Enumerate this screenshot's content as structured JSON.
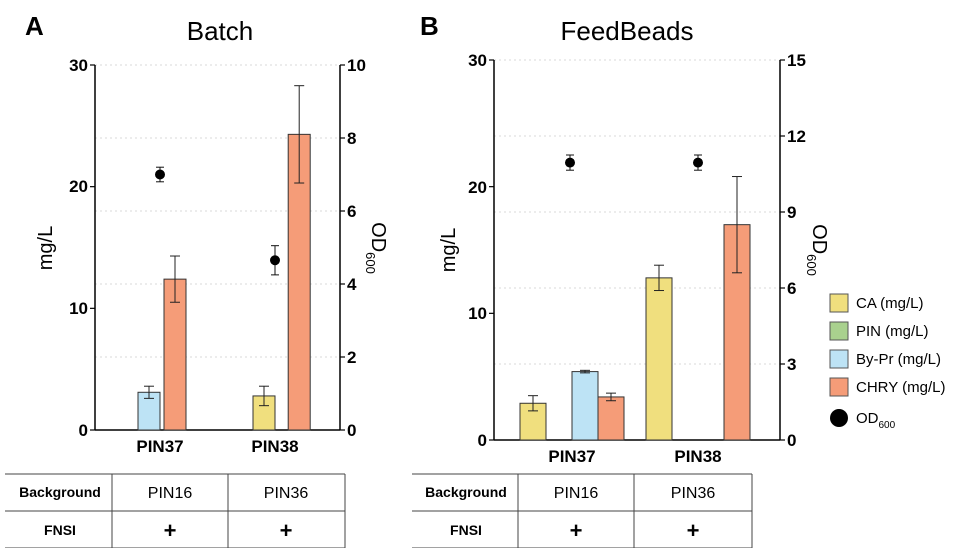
{
  "panels": [
    {
      "letter": "A",
      "title": "Batch",
      "ylabel_left": "mg/L",
      "ylabel_right_main": "OD",
      "ylabel_right_sub": "600",
      "left_ticks": [
        "0",
        "10",
        "20",
        "30"
      ],
      "right_ticks": [
        "0",
        "2",
        "4",
        "6",
        "8",
        "10"
      ],
      "categories": [
        "PIN37",
        "PIN38"
      ],
      "table": {
        "row_headers": [
          "Background",
          "FNSI"
        ],
        "rows": [
          [
            "PIN16",
            "PIN36"
          ],
          [
            "+",
            "+"
          ]
        ]
      }
    },
    {
      "letter": "B",
      "title": "FeedBeads",
      "ylabel_left": "mg/L",
      "ylabel_right_main": "OD",
      "ylabel_right_sub": "600",
      "left_ticks": [
        "0",
        "10",
        "20",
        "30"
      ],
      "right_ticks": [
        "0",
        "3",
        "6",
        "9",
        "12",
        "15"
      ],
      "categories": [
        "PIN37",
        "PIN38"
      ],
      "table": {
        "row_headers": [
          "Background",
          "FNSI"
        ],
        "rows": [
          [
            "PIN16",
            "PIN36"
          ],
          [
            "+",
            "+"
          ]
        ]
      }
    }
  ],
  "legend": [
    {
      "label": "CA (mg/L)",
      "color": "#f0df7e"
    },
    {
      "label": "PIN (mg/L)",
      "color": "#a9d18e"
    },
    {
      "label": "By-Pr (mg/L)",
      "color": "#bde3f5"
    },
    {
      "label": "CHRY (mg/L)",
      "color": "#f59c78"
    },
    {
      "label_main": "OD",
      "label_sub": "600",
      "color": "#000000"
    }
  ],
  "chart_data": [
    {
      "type": "bar",
      "title": "Batch",
      "categories": [
        "PIN37",
        "PIN38"
      ],
      "ylabel": "mg/L",
      "ylim": [
        0,
        30
      ],
      "y2label": "OD600",
      "y2lim": [
        0,
        10
      ],
      "grid": true,
      "series": [
        {
          "name": "CA (mg/L)",
          "color": "#f0df7e",
          "values": [
            0,
            2.8
          ],
          "errors": [
            0,
            0.8
          ]
        },
        {
          "name": "PIN (mg/L)",
          "color": "#a9d18e",
          "values": [
            0,
            0
          ],
          "errors": [
            0,
            0
          ]
        },
        {
          "name": "By-Pr (mg/L)",
          "color": "#bde3f5",
          "values": [
            3.1,
            0
          ],
          "errors": [
            0.5,
            0
          ]
        },
        {
          "name": "CHRY (mg/L)",
          "color": "#f59c78",
          "values": [
            12.4,
            24.3
          ],
          "errors": [
            1.9,
            4.0
          ]
        }
      ],
      "od600": {
        "name": "OD600",
        "axis": "right",
        "values": [
          7.0,
          4.65
        ],
        "errors": [
          0.2,
          0.4
        ]
      }
    },
    {
      "type": "bar",
      "title": "FeedBeads",
      "categories": [
        "PIN37",
        "PIN38"
      ],
      "ylabel": "mg/L",
      "ylim": [
        0,
        30
      ],
      "y2label": "OD600",
      "y2lim": [
        0,
        15
      ],
      "grid": true,
      "series": [
        {
          "name": "CA (mg/L)",
          "color": "#f0df7e",
          "values": [
            2.9,
            12.8
          ],
          "errors": [
            0.6,
            1.0
          ]
        },
        {
          "name": "PIN (mg/L)",
          "color": "#a9d18e",
          "values": [
            0,
            0
          ],
          "errors": [
            0,
            0
          ]
        },
        {
          "name": "By-Pr (mg/L)",
          "color": "#bde3f5",
          "values": [
            5.4,
            0
          ],
          "errors": [
            0.1,
            0
          ]
        },
        {
          "name": "CHRY (mg/L)",
          "color": "#f59c78",
          "values": [
            3.4,
            17.0
          ],
          "errors": [
            0.3,
            3.8
          ]
        }
      ],
      "od600": {
        "name": "OD600",
        "axis": "right",
        "values": [
          10.95,
          10.95
        ],
        "errors": [
          0.3,
          0.3
        ]
      }
    }
  ]
}
